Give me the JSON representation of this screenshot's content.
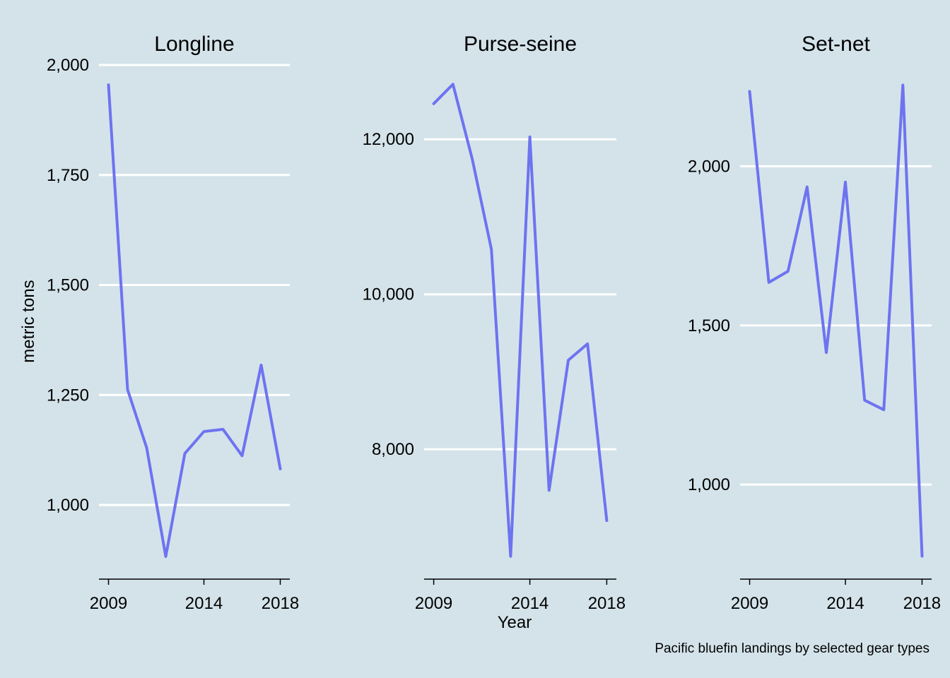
{
  "chart_data": {
    "type": "line",
    "xlabel": "Year",
    "ylabel": "metric tons",
    "caption": "Pacific bluefin landings by selected gear types",
    "colors": {
      "background": "#d4e3ea",
      "line": "#6e73f0",
      "grid": "#ffffff"
    },
    "grid": "horizontal major only",
    "x": [
      2009,
      2010,
      2011,
      2012,
      2013,
      2014,
      2015,
      2016,
      2017,
      2018
    ],
    "x_ticks": [
      2009,
      2014,
      2018
    ],
    "facets": [
      {
        "title": "Longline",
        "ylim": [
          880,
          1958
        ],
        "y_ticks": [
          1000,
          1250,
          1500,
          1750,
          2000
        ],
        "y_tick_labels": [
          "1,000",
          "1,250",
          "1,500",
          "1,750",
          "2,000"
        ],
        "values": [
          1955,
          1262,
          1130,
          883,
          1117,
          1167,
          1172,
          1112,
          1318,
          1082
        ]
      },
      {
        "title": "Purse-seine",
        "ylim": [
          6600,
          12720
        ],
        "y_ticks": [
          8000,
          10000,
          12000
        ],
        "y_tick_labels": [
          "8,000",
          "10,000",
          "12,000"
        ],
        "values": [
          12460,
          12710,
          11750,
          10580,
          6620,
          12030,
          7470,
          9150,
          9360,
          7080
        ]
      },
      {
        "title": "Set-net",
        "ylim": [
          770,
          2260
        ],
        "y_ticks": [
          1000,
          1500,
          2000
        ],
        "y_tick_labels": [
          "1,000",
          "1,500",
          "2,000"
        ],
        "values": [
          2235,
          1635,
          1670,
          1935,
          1415,
          1950,
          1265,
          1235,
          2255,
          775
        ]
      }
    ]
  }
}
